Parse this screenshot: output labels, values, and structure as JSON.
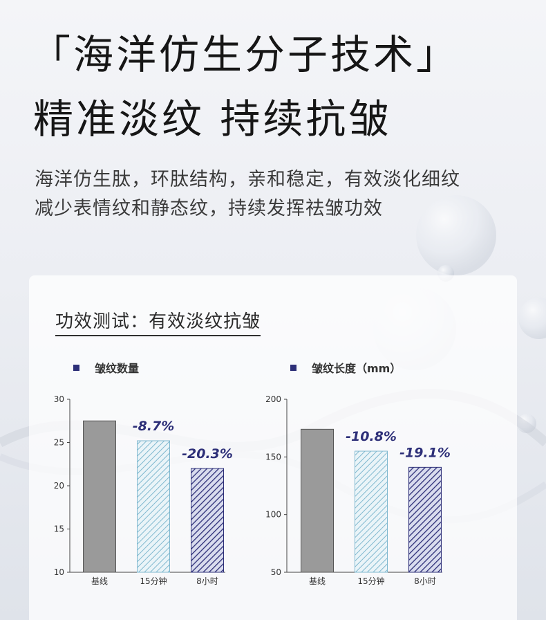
{
  "page": {
    "headline_line1": "「海洋仿生分子技术」",
    "headline_line2": "精准淡纹 持续抗皱",
    "subline_line1": "海洋仿生肽，环肽结构，亲和稳定，有效淡化细纹",
    "subline_line2": "减少表情纹和静态纹，持续发挥祛皱功效",
    "card_title": "功效测试：有效淡纹抗皱"
  },
  "colors": {
    "baseline_bar": "#9a9a9a",
    "bar_15min_fill": "#eaf4f8",
    "bar_15min_hatch": "#7fb8cf",
    "bar_8h_fill": "#d9dcee",
    "bar_8h_hatch": "#2d2f78",
    "annotation": "#2d2f78",
    "legend_swatch": "#2d2f78"
  },
  "chart_data": [
    {
      "type": "bar",
      "legend": "皱纹数量",
      "categories": [
        "基线",
        "15分钟",
        "8小时"
      ],
      "values": [
        27.5,
        25.2,
        22.0
      ],
      "annotations": [
        "",
        "-8.7%",
        "-20.3%"
      ],
      "ylim": [
        10,
        30
      ],
      "yticks": [
        "30",
        "25",
        "20",
        "15",
        "10"
      ],
      "grid": false
    },
    {
      "type": "bar",
      "legend": "皱纹长度（mm）",
      "categories": [
        "基线",
        "15分钟",
        "8小时"
      ],
      "values": [
        174,
        155,
        141
      ],
      "annotations": [
        "",
        "-10.8%",
        "-19.1%"
      ],
      "ylim": [
        50,
        200
      ],
      "yticks": [
        "200",
        "150",
        "100",
        "50"
      ],
      "grid": false
    }
  ]
}
